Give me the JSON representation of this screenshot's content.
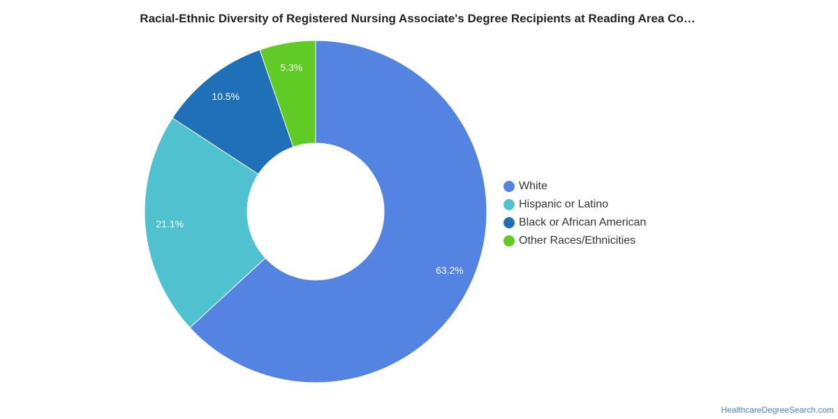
{
  "chart_data": {
    "type": "pie",
    "title": "Racial-Ethnic Diversity of Registered Nursing Associate's Degree Recipients at Reading Area Co…",
    "slices": [
      {
        "label": "White",
        "value": 63.2,
        "display": "63.2%",
        "color": "#5384e2"
      },
      {
        "label": "Hispanic or Latino",
        "value": 21.1,
        "display": "21.1%",
        "color": "#50c1ce"
      },
      {
        "label": "Black or African American",
        "value": 10.5,
        "display": "10.5%",
        "color": "#1f70b7"
      },
      {
        "label": "Other Races/Ethnicities",
        "value": 5.3,
        "display": "5.3%",
        "color": "#61cb26"
      }
    ],
    "legend_position": "right",
    "donut": true
  },
  "footer": {
    "source_link": "HealthcareDegreeSearch.com"
  }
}
